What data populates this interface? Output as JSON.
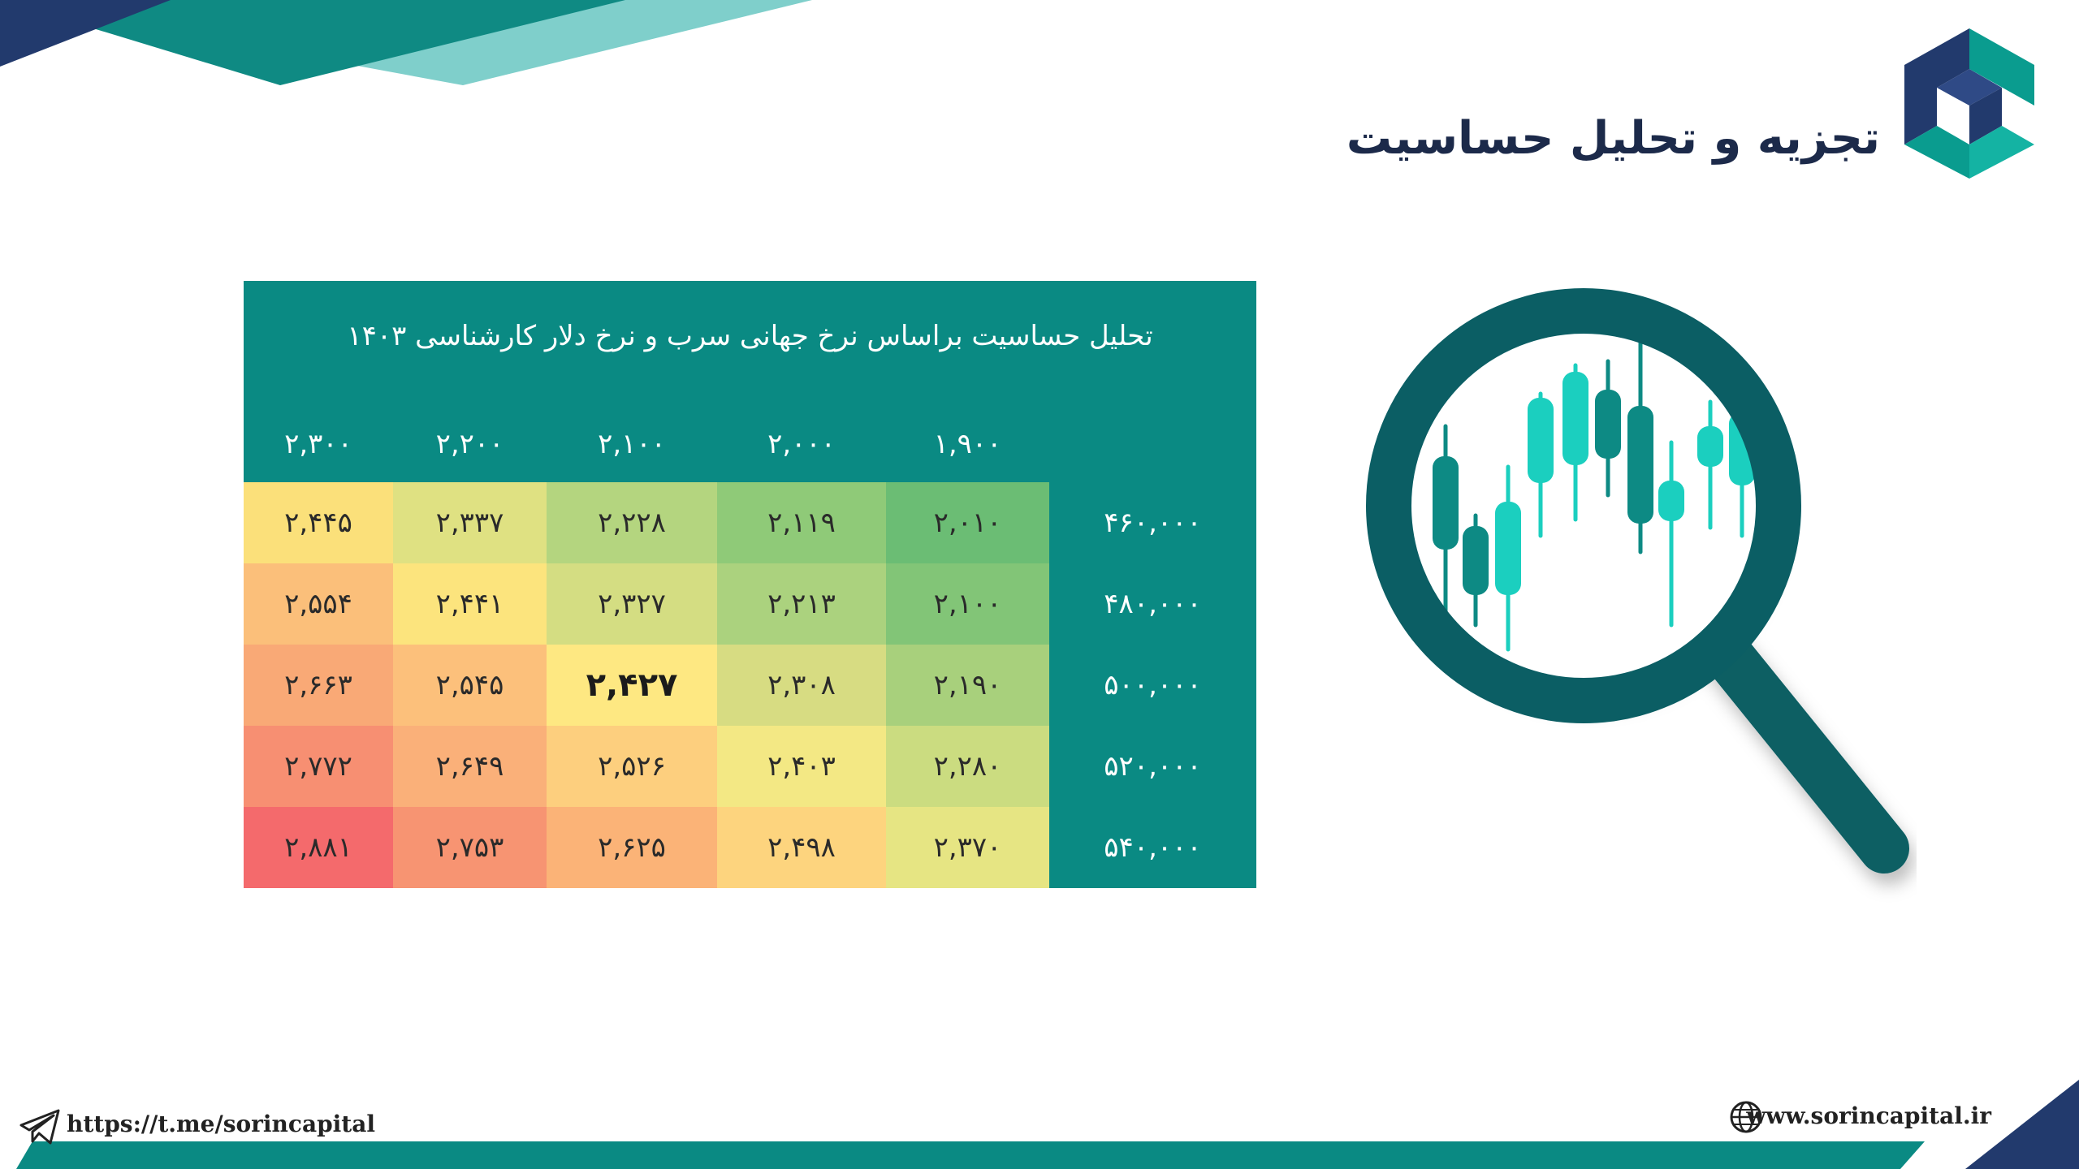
{
  "header": {
    "title": "تجزیه و تحلیل حساسیت",
    "logo_icon": "sorin-capital-logo-icon"
  },
  "table": {
    "caption": "تحلیل حساسیت براساس نرخ جهانی سرب و نرخ دلار کارشناسی ۱۴۰۳",
    "columns": [
      "۲,۳۰۰",
      "۲,۲۰۰",
      "۲,۱۰۰",
      "۲,۰۰۰",
      "۱,۹۰۰"
    ],
    "rows": [
      {
        "label": "۴۶۰,۰۰۰",
        "cells": [
          "۲,۴۴۵",
          "۲,۳۳۷",
          "۲,۲۲۸",
          "۲,۱۱۹",
          "۲,۰۱۰"
        ]
      },
      {
        "label": "۴۸۰,۰۰۰",
        "cells": [
          "۲,۵۵۴",
          "۲,۴۴۱",
          "۲,۳۲۷",
          "۲,۲۱۳",
          "۲,۱۰۰"
        ]
      },
      {
        "label": "۵۰۰,۰۰۰",
        "cells": [
          "۲,۶۶۳",
          "۲,۵۴۵",
          "۲,۴۲۷",
          "۲,۳۰۸",
          "۲,۱۹۰"
        ]
      },
      {
        "label": "۵۲۰,۰۰۰",
        "cells": [
          "۲,۷۷۲",
          "۲,۶۴۹",
          "۲,۵۲۶",
          "۲,۴۰۳",
          "۲,۲۸۰"
        ]
      },
      {
        "label": "۵۴۰,۰۰۰",
        "cells": [
          "۲,۸۸۱",
          "۲,۷۵۳",
          "۲,۶۲۵",
          "۲,۴۹۸",
          "۲,۳۷۰"
        ]
      }
    ],
    "highlight": {
      "row": 2,
      "col": 2
    },
    "colors": [
      [
        "#fbe07a",
        "#dfe182",
        "#b4d57f",
        "#8fca78",
        "#6bbd74"
      ],
      [
        "#fbbf7a",
        "#fce47d",
        "#d4dd82",
        "#abd27e",
        "#82c577"
      ],
      [
        "#f9a976",
        "#fcc07b",
        "#fee882",
        "#d7dc82",
        "#a8d07c"
      ],
      [
        "#f78f72",
        "#fab079",
        "#fdcf7e",
        "#f3e884",
        "#cbdc80"
      ],
      [
        "#f46a6c",
        "#f79472",
        "#fbb377",
        "#fdd47e",
        "#e6e583"
      ]
    ]
  },
  "illustration": {
    "icon": "magnifier-candlestick-icon"
  },
  "footer": {
    "telegram_icon": "telegram-icon",
    "telegram_link": "https://t.me/sorincapital",
    "globe_icon": "globe-icon",
    "website": "www.sorincapital.ir"
  },
  "brand_colors": {
    "navy": "#223a6d",
    "teal": "#0a8a83",
    "light_teal": "#7fcfcb"
  }
}
